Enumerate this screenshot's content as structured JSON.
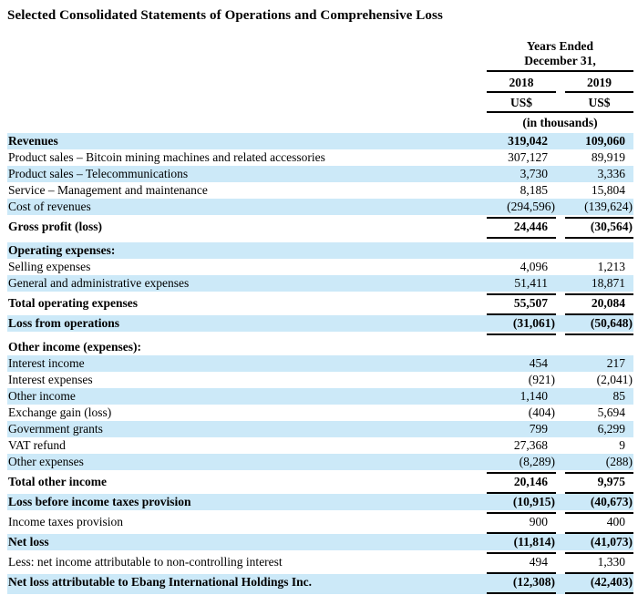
{
  "title": "Selected Consolidated Statements of Operations and Comprehensive Loss",
  "colors": {
    "row_shade": "#cce9f8",
    "text": "#000000",
    "rule": "#000000"
  },
  "table": {
    "header": {
      "period_line1": "Years Ended",
      "period_line2": "December 31,",
      "columns": [
        "2018",
        "2019"
      ],
      "currency": [
        "US$",
        "US$"
      ],
      "units_note": "(in thousands)"
    },
    "rows": [
      {
        "label": "Revenues",
        "v2018": "319,042",
        "v2019": "109,060",
        "bold": true,
        "shaded": true,
        "underline": "none"
      },
      {
        "label": "Product sales – Bitcoin mining machines and related accessories",
        "v2018": "307,127",
        "v2019": "89,919",
        "bold": false,
        "shaded": false,
        "underline": "none"
      },
      {
        "label": "Product sales – Telecommunications",
        "v2018": "3,730",
        "v2019": "3,336",
        "bold": false,
        "shaded": true,
        "underline": "none"
      },
      {
        "label": "Service – Management and maintenance",
        "v2018": "8,185",
        "v2019": "15,804",
        "bold": false,
        "shaded": false,
        "underline": "none"
      },
      {
        "label": "Cost of revenues",
        "v2018": "(294,596)",
        "v2019": "(139,624)",
        "bold": false,
        "shaded": true,
        "underline": "single"
      },
      {
        "label": "Gross profit (loss)",
        "v2018": "24,446",
        "v2019": "(30,564)",
        "bold": true,
        "shaded": false,
        "underline": "single"
      },
      {
        "label": "Operating expenses:",
        "bold": true,
        "shaded": true,
        "underline": "none"
      },
      {
        "label": "Selling expenses",
        "v2018": "4,096",
        "v2019": "1,213",
        "bold": false,
        "shaded": false,
        "underline": "none"
      },
      {
        "label": "General and administrative expenses",
        "v2018": "51,411",
        "v2019": "18,871",
        "bold": false,
        "shaded": true,
        "underline": "single"
      },
      {
        "label": "Total operating expenses",
        "v2018": "55,507",
        "v2019": "20,084",
        "bold": true,
        "shaded": false,
        "underline": "single"
      },
      {
        "label": "Loss from operations",
        "v2018": "(31,061)",
        "v2019": "(50,648)",
        "bold": true,
        "shaded": true,
        "underline": "single"
      },
      {
        "label": "Other income (expenses):",
        "bold": true,
        "shaded": false,
        "underline": "none"
      },
      {
        "label": "Interest income",
        "v2018": "454",
        "v2019": "217",
        "bold": false,
        "shaded": true,
        "underline": "none"
      },
      {
        "label": "Interest expenses",
        "v2018": "(921)",
        "v2019": "(2,041)",
        "bold": false,
        "shaded": false,
        "underline": "none"
      },
      {
        "label": "Other income",
        "v2018": "1,140",
        "v2019": "85",
        "bold": false,
        "shaded": true,
        "underline": "none"
      },
      {
        "label": "Exchange gain (loss)",
        "v2018": "(404)",
        "v2019": "5,694",
        "bold": false,
        "shaded": false,
        "underline": "none"
      },
      {
        "label": "Government grants",
        "v2018": "799",
        "v2019": "6,299",
        "bold": false,
        "shaded": true,
        "underline": "none"
      },
      {
        "label": "VAT refund",
        "v2018": "27,368",
        "v2019": "9",
        "bold": false,
        "shaded": false,
        "underline": "none"
      },
      {
        "label": "Other expenses",
        "v2018": "(8,289)",
        "v2019": "(288)",
        "bold": false,
        "shaded": true,
        "underline": "single"
      },
      {
        "label": "Total other income",
        "v2018": "20,146",
        "v2019": "9,975",
        "bold": true,
        "shaded": false,
        "underline": "single"
      },
      {
        "label": "Loss before income taxes provision",
        "v2018": "(10,915)",
        "v2019": "(40,673)",
        "bold": true,
        "shaded": true,
        "underline": "single"
      },
      {
        "label": "Income taxes provision",
        "v2018": "900",
        "v2019": "400",
        "bold": false,
        "shaded": false,
        "underline": "single"
      },
      {
        "label": "Net loss",
        "v2018": "(11,814)",
        "v2019": "(41,073)",
        "bold": true,
        "shaded": true,
        "underline": "single"
      },
      {
        "label": "Less: net income attributable to non-controlling interest",
        "v2018": "494",
        "v2019": "1,330",
        "bold": false,
        "shaded": false,
        "underline": "single"
      },
      {
        "label": "Net loss attributable to Ebang International Holdings Inc.",
        "v2018": "(12,308)",
        "v2019": "(42,403)",
        "bold": true,
        "shaded": true,
        "underline": "double"
      }
    ]
  }
}
